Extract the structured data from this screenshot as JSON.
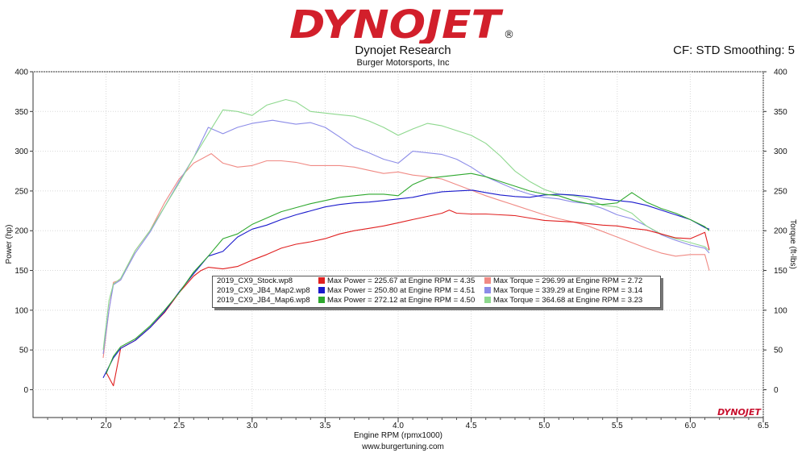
{
  "brand": {
    "logo_text": "DYNOJET",
    "logo_mark": "®",
    "watermark": "DYNOJET"
  },
  "header": {
    "title": "Dynojet Research",
    "subtitle": "Burger Motorsports, Inc",
    "cf_text": "CF: STD Smoothing: 5"
  },
  "footer": {
    "url": "www.burgertuning.com"
  },
  "colors": {
    "stock_power": "#e02020",
    "stock_torque": "#f08a84",
    "map2_power": "#1a1acc",
    "map2_torque": "#8c8ce8",
    "map6_power": "#2ea82e",
    "map6_torque": "#8ed88e"
  },
  "chart_data": {
    "type": "line",
    "xlabel": "Engine RPM (rpmx1000)",
    "ylabel_left": "Power (hp)",
    "ylabel_right": "Torque (ft-lbs)",
    "xlim": [
      1.5,
      6.5
    ],
    "ylim": [
      -35,
      400
    ],
    "x_ticks": [
      "2.0",
      "2.5",
      "3.0",
      "3.5",
      "4.0",
      "4.5",
      "5.0",
      "5.5",
      "6.0",
      "6.5"
    ],
    "y_ticks": [
      "0",
      "50",
      "100",
      "150",
      "200",
      "250",
      "300",
      "350",
      "400"
    ],
    "grid": true,
    "legend": {
      "placement": "center",
      "rows": [
        {
          "file": "2019_CX9_Stock.wp8",
          "power": "Max Power = 225.67 at Engine RPM = 4.35",
          "torque": "Max Torque = 296.99 at Engine RPM = 2.72"
        },
        {
          "file": "2019_CX9_JB4_Map2.wp8",
          "power": "Max Power = 250.80 at Engine RPM = 4.51",
          "torque": "Max Torque = 339.29 at Engine RPM = 3.14"
        },
        {
          "file": "2019_CX9_JB4_Map6.wp8",
          "power": "Max Power = 272.12 at Engine RPM = 4.50",
          "torque": "Max Torque = 364.68 at Engine RPM = 3.23"
        }
      ]
    },
    "series": [
      {
        "key": "stock_power",
        "x": [
          2.0,
          2.05,
          2.1,
          2.2,
          2.3,
          2.4,
          2.5,
          2.6,
          2.65,
          2.7,
          2.8,
          2.9,
          3.0,
          3.1,
          3.2,
          3.3,
          3.4,
          3.5,
          3.6,
          3.7,
          3.8,
          3.9,
          4.0,
          4.1,
          4.2,
          4.3,
          4.35,
          4.4,
          4.5,
          4.6,
          4.7,
          4.8,
          4.9,
          5.0,
          5.1,
          5.2,
          5.3,
          5.4,
          5.5,
          5.6,
          5.7,
          5.8,
          5.9,
          6.0,
          6.05,
          6.1,
          6.13
        ],
        "y": [
          22,
          5,
          52,
          62,
          78,
          97,
          122,
          143,
          150,
          154,
          152,
          155,
          163,
          170,
          178,
          183,
          186,
          190,
          196,
          200,
          203,
          206,
          210,
          214,
          218,
          222,
          226,
          222,
          221,
          221,
          220,
          219,
          216,
          213,
          212,
          211,
          209,
          207,
          206,
          203,
          201,
          196,
          191,
          190,
          194,
          198,
          176
        ]
      },
      {
        "key": "map2_power",
        "x": [
          1.98,
          2.05,
          2.1,
          2.2,
          2.3,
          2.4,
          2.5,
          2.6,
          2.7,
          2.8,
          2.9,
          3.0,
          3.1,
          3.2,
          3.3,
          3.4,
          3.5,
          3.6,
          3.7,
          3.8,
          3.9,
          4.0,
          4.1,
          4.2,
          4.3,
          4.4,
          4.51,
          4.6,
          4.7,
          4.8,
          4.9,
          5.0,
          5.1,
          5.2,
          5.3,
          5.4,
          5.5,
          5.6,
          5.7,
          5.8,
          5.9,
          6.0,
          6.1,
          6.13
        ],
        "y": [
          15,
          40,
          52,
          62,
          78,
          98,
          123,
          146,
          168,
          174,
          192,
          202,
          207,
          214,
          220,
          225,
          230,
          233,
          235,
          236,
          238,
          240,
          242,
          246,
          249,
          250,
          251,
          248,
          245,
          243,
          242,
          245,
          246,
          245,
          243,
          240,
          238,
          236,
          232,
          226,
          220,
          214,
          204,
          202
        ]
      },
      {
        "key": "map6_power",
        "x": [
          2.0,
          2.05,
          2.1,
          2.2,
          2.3,
          2.4,
          2.5,
          2.6,
          2.7,
          2.8,
          2.9,
          3.0,
          3.1,
          3.2,
          3.3,
          3.4,
          3.5,
          3.6,
          3.7,
          3.8,
          3.9,
          4.0,
          4.1,
          4.2,
          4.3,
          4.4,
          4.5,
          4.6,
          4.7,
          4.8,
          4.9,
          5.0,
          5.1,
          5.2,
          5.3,
          5.4,
          5.5,
          5.6,
          5.7,
          5.8,
          5.9,
          6.0,
          6.1,
          6.13
        ],
        "y": [
          20,
          42,
          54,
          64,
          80,
          100,
          122,
          148,
          168,
          190,
          196,
          208,
          216,
          224,
          229,
          234,
          238,
          242,
          244,
          246,
          246,
          244,
          258,
          266,
          268,
          270,
          272,
          268,
          262,
          256,
          250,
          246,
          244,
          238,
          234,
          233,
          235,
          248,
          236,
          228,
          222,
          214,
          205,
          200
        ]
      },
      {
        "key": "stock_torque",
        "x": [
          1.98,
          2.02,
          2.05,
          2.1,
          2.2,
          2.3,
          2.4,
          2.5,
          2.6,
          2.72,
          2.8,
          2.9,
          3.0,
          3.1,
          3.2,
          3.3,
          3.4,
          3.5,
          3.6,
          3.7,
          3.8,
          3.9,
          4.0,
          4.1,
          4.2,
          4.3,
          4.4,
          4.5,
          4.6,
          4.7,
          4.8,
          4.9,
          5.0,
          5.1,
          5.2,
          5.3,
          5.4,
          5.5,
          5.6,
          5.7,
          5.8,
          5.9,
          6.0,
          6.1,
          6.13
        ],
        "y": [
          40,
          100,
          135,
          138,
          175,
          200,
          235,
          265,
          285,
          297,
          285,
          280,
          282,
          288,
          288,
          286,
          282,
          282,
          282,
          280,
          276,
          272,
          274,
          270,
          268,
          265,
          258,
          251,
          244,
          238,
          232,
          226,
          220,
          215,
          211,
          206,
          199,
          192,
          185,
          178,
          172,
          168,
          170,
          170,
          150
        ]
      },
      {
        "key": "map2_torque",
        "x": [
          1.98,
          2.02,
          2.05,
          2.1,
          2.2,
          2.3,
          2.4,
          2.5,
          2.6,
          2.7,
          2.8,
          2.9,
          3.0,
          3.14,
          3.2,
          3.3,
          3.4,
          3.5,
          3.6,
          3.7,
          3.8,
          3.9,
          4.0,
          4.1,
          4.2,
          4.3,
          4.4,
          4.5,
          4.6,
          4.7,
          4.8,
          4.9,
          5.0,
          5.1,
          5.2,
          5.3,
          5.4,
          5.5,
          5.6,
          5.7,
          5.8,
          5.9,
          6.0,
          6.1,
          6.13
        ],
        "y": [
          45,
          100,
          132,
          138,
          172,
          198,
          230,
          262,
          292,
          330,
          322,
          330,
          335,
          339,
          337,
          334,
          336,
          330,
          318,
          305,
          298,
          290,
          285,
          300,
          298,
          296,
          290,
          280,
          268,
          260,
          252,
          246,
          242,
          240,
          236,
          234,
          228,
          220,
          215,
          206,
          195,
          188,
          182,
          178,
          172
        ]
      },
      {
        "key": "map6_torque",
        "x": [
          1.98,
          2.02,
          2.05,
          2.1,
          2.2,
          2.3,
          2.4,
          2.5,
          2.6,
          2.7,
          2.8,
          2.9,
          3.0,
          3.1,
          3.23,
          3.3,
          3.4,
          3.5,
          3.6,
          3.7,
          3.8,
          3.9,
          4.0,
          4.1,
          4.2,
          4.3,
          4.4,
          4.5,
          4.6,
          4.7,
          4.8,
          4.9,
          5.0,
          5.1,
          5.2,
          5.3,
          5.4,
          5.5,
          5.6,
          5.7,
          5.8,
          5.9,
          6.0,
          6.1,
          6.13
        ],
        "y": [
          50,
          112,
          133,
          140,
          175,
          200,
          230,
          260,
          292,
          322,
          352,
          350,
          345,
          358,
          365,
          362,
          350,
          348,
          346,
          344,
          338,
          330,
          320,
          328,
          335,
          332,
          326,
          320,
          310,
          294,
          275,
          262,
          252,
          246,
          244,
          240,
          232,
          230,
          222,
          206,
          196,
          190,
          185,
          180,
          175
        ]
      }
    ]
  }
}
